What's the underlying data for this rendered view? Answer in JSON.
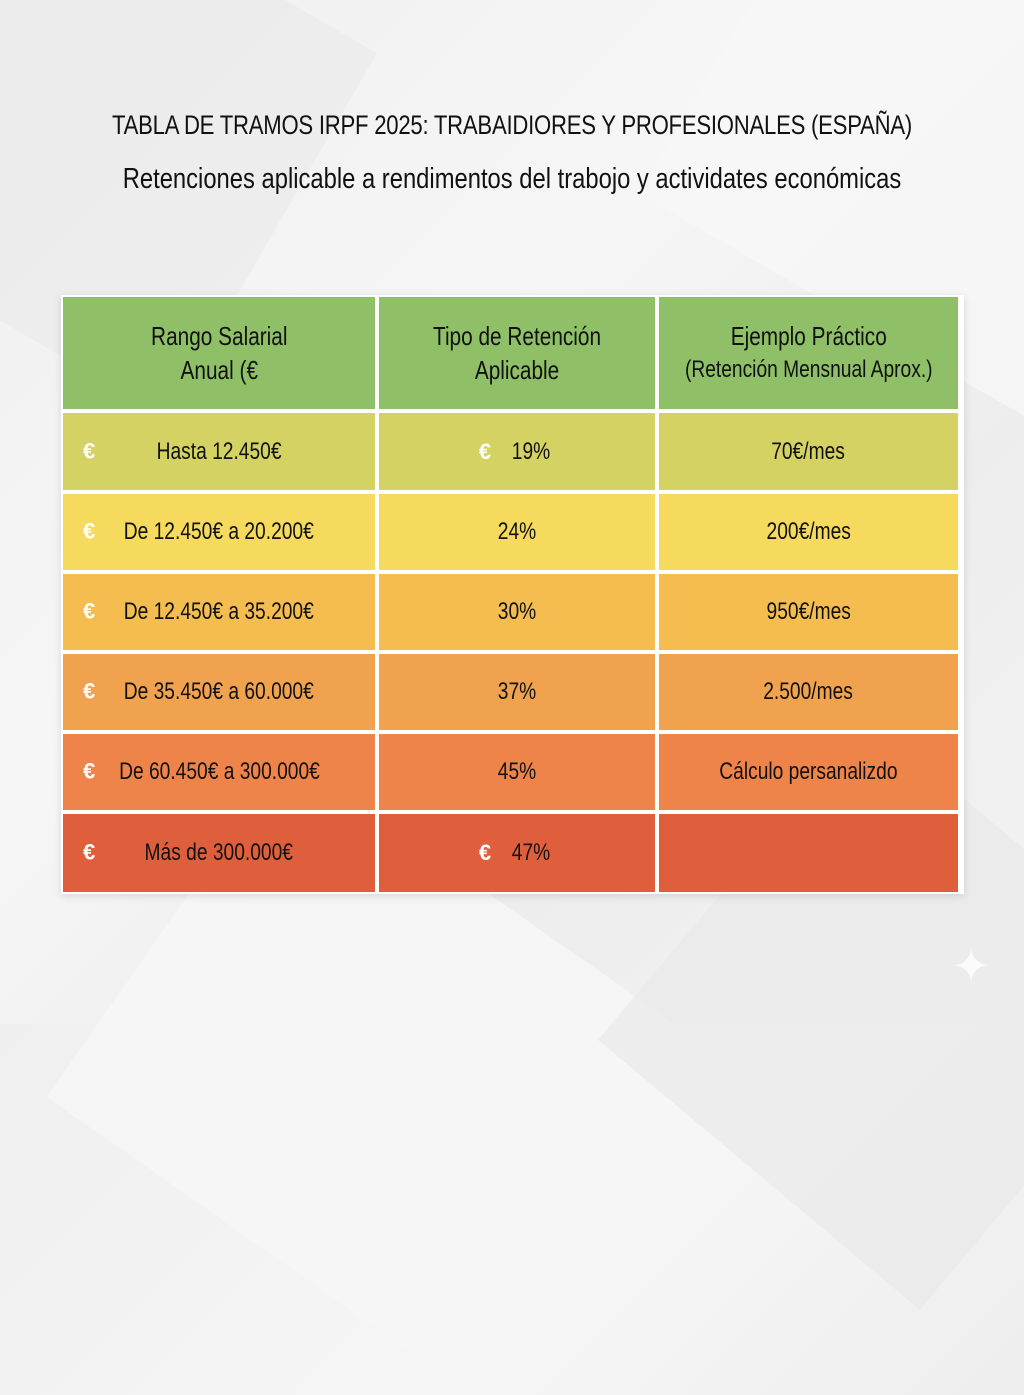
{
  "title": "TABLA DE TRAMOS IRPF 2025: TRABAIDIORES Y PROFESIONALES (ESPAÑA)",
  "subtitle": "Retenciones aplicable a rendimentos del trabojo y actividates económicas",
  "icons": {
    "euro": "€",
    "sparkle": "✦"
  },
  "colors": {
    "header": "#8fc068",
    "row1": "#d4d262",
    "row2": "#f5da5e",
    "row3": "#f5bd50",
    "row4": "#f1a24f",
    "row5": "#ee8449",
    "row6": "#df5f3c"
  },
  "table": {
    "headers": [
      {
        "line1": "Rango Salarial",
        "line2": "Anual (€"
      },
      {
        "line1": "Tipo de Retención",
        "line2": "Aplicable"
      },
      {
        "line1": "Ejemplo Práctico",
        "line2": "(Retención Mensnual Aprox.)"
      }
    ],
    "rows": [
      {
        "range": "Hasta 12.450€",
        "rate": "19%",
        "example": "70€/mes",
        "range_icon": true,
        "rate_icon": true
      },
      {
        "range": "De 12.450€ a 20.200€",
        "rate": "24%",
        "example": "200€/mes",
        "range_icon": true,
        "rate_icon": false
      },
      {
        "range": "De 12.450€ a 35.200€",
        "rate": "30%",
        "example": "950€/mes",
        "range_icon": true,
        "rate_icon": false
      },
      {
        "range": "De 35.450€ a 60.000€",
        "rate": "37%",
        "example": "2.500/mes",
        "range_icon": true,
        "rate_icon": false
      },
      {
        "range": "De 60.450€ a 300.000€",
        "rate": "45%",
        "example": "Cálculo persanalizdo",
        "range_icon": true,
        "rate_icon": false
      },
      {
        "range": "Más de 300.000€",
        "rate": "47%",
        "example": "",
        "range_icon": true,
        "rate_icon": true
      }
    ]
  }
}
